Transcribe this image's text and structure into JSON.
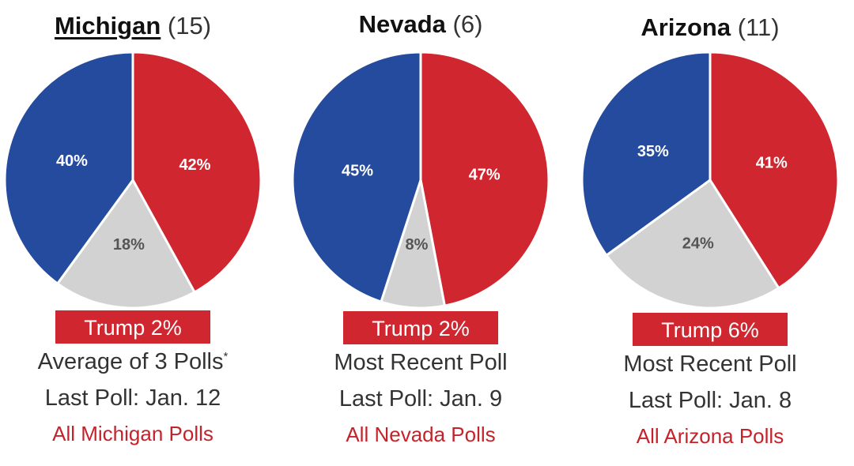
{
  "chart_data": [
    {
      "type": "pie",
      "title": "Michigan",
      "electoral_votes": "(15)",
      "slices": [
        {
          "label": "40%",
          "value": 40,
          "color": "#244b9e",
          "label_color": "#ffffff"
        },
        {
          "label": "42%",
          "value": 42,
          "color": "#d0262f",
          "label_color": "#ffffff"
        },
        {
          "label": "18%",
          "value": 18,
          "color": "#d2d2d2",
          "label_color": "#555555"
        }
      ],
      "slice_order": [
        1,
        2,
        0
      ],
      "leader": "Trump 2%",
      "poll_type": "Average of 3 Polls",
      "footnote_mark": "*",
      "last_poll": "Last Poll: Jan. 12",
      "link": "All Michigan Polls",
      "title_underlined": true
    },
    {
      "type": "pie",
      "title": "Nevada",
      "electoral_votes": "(6)",
      "slices": [
        {
          "label": "45%",
          "value": 45,
          "color": "#244b9e",
          "label_color": "#ffffff"
        },
        {
          "label": "47%",
          "value": 47,
          "color": "#d0262f",
          "label_color": "#ffffff"
        },
        {
          "label": "8%",
          "value": 8,
          "color": "#d2d2d2",
          "label_color": "#555555"
        }
      ],
      "slice_order": [
        1,
        2,
        0
      ],
      "leader": "Trump 2%",
      "poll_type": "Most Recent Poll",
      "footnote_mark": "",
      "last_poll": "Last Poll: Jan. 9",
      "link": "All Nevada Polls",
      "title_underlined": false
    },
    {
      "type": "pie",
      "title": "Arizona",
      "electoral_votes": "(11)",
      "slices": [
        {
          "label": "35%",
          "value": 35,
          "color": "#244b9e",
          "label_color": "#ffffff"
        },
        {
          "label": "41%",
          "value": 41,
          "color": "#d0262f",
          "label_color": "#ffffff"
        },
        {
          "label": "24%",
          "value": 24,
          "color": "#d2d2d2",
          "label_color": "#555555"
        }
      ],
      "slice_order": [
        1,
        2,
        0
      ],
      "leader": "Trump 6%",
      "poll_type": "Most Recent Poll",
      "footnote_mark": "",
      "last_poll": "Last Poll: Jan. 8",
      "link": "All Arizona Polls",
      "title_underlined": false
    }
  ]
}
